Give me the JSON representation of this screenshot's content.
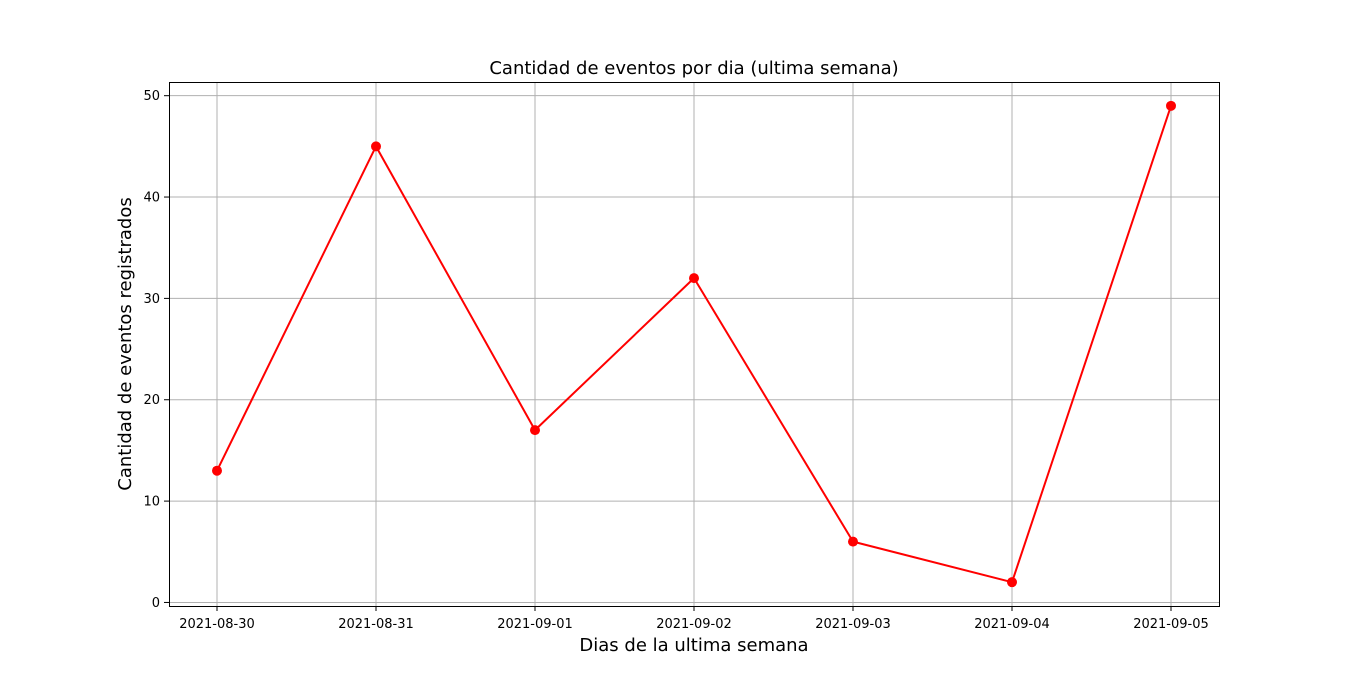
{
  "chart_data": {
    "type": "line",
    "title": "Cantidad de eventos por dia (ultima semana)",
    "xlabel": "Dias de la ultima semana",
    "ylabel": "Cantidad de eventos registrados",
    "x": [
      "2021-08-30",
      "2021-08-31",
      "2021-09-01",
      "2021-09-02",
      "2021-09-03",
      "2021-09-04",
      "2021-09-05"
    ],
    "series": [
      {
        "values": [
          13,
          45,
          17,
          32,
          6,
          2,
          49
        ],
        "color": "#ff0000",
        "marker": "circle"
      }
    ],
    "yticks": [
      "0",
      "10",
      "20",
      "30",
      "40",
      "50"
    ],
    "ylim": [
      -0.35,
      51.35
    ],
    "grid": true
  }
}
